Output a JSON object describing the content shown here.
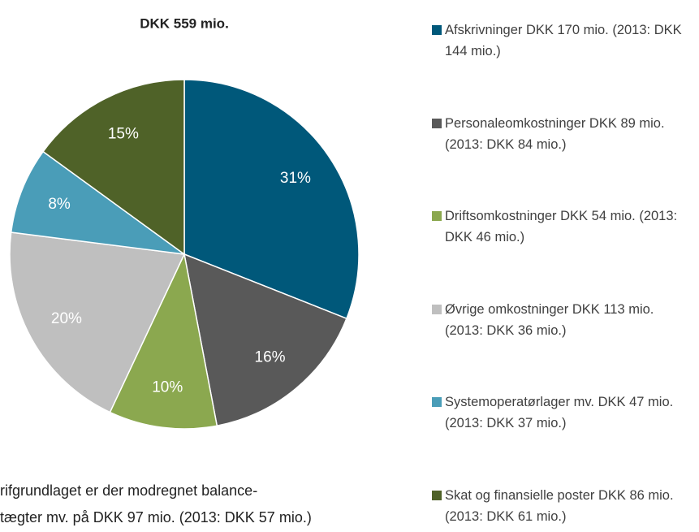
{
  "chart_data": {
    "type": "pie",
    "title": "DKK 559 mio.",
    "categories": [
      "Afskrivninger DKK 170 mio. (2013: DKK 144 mio.)",
      "Personaleomkostninger DKK 89 mio. (2013: DKK 84 mio.)",
      "Driftsomkostninger DKK 54 mio. (2013: DKK 46 mio.)",
      "Øvrige omkostninger DKK 113 mio. (2013: DKK 36 mio.)",
      "Systemoperatørlager mv. DKK 47 mio. (2013: DKK 37 mio.)",
      "Skat og finansielle poster DKK 86 mio. (2013: DKK 61 mio.)"
    ],
    "values": [
      31,
      16,
      10,
      20,
      8,
      15
    ],
    "value_labels": [
      "31%",
      "16%",
      "10%",
      "20%",
      "8%",
      "15%"
    ],
    "colors": [
      "#00587a",
      "#595959",
      "#8ba84f",
      "#bfbfbf",
      "#4a9db8",
      "#4f6228"
    ],
    "legend": "right"
  },
  "notes": [
    "rifgrundlaget er der modregnet balance-",
    "tægter mv. på DKK 97 mio. (2013: DKK 57 mio.)"
  ]
}
